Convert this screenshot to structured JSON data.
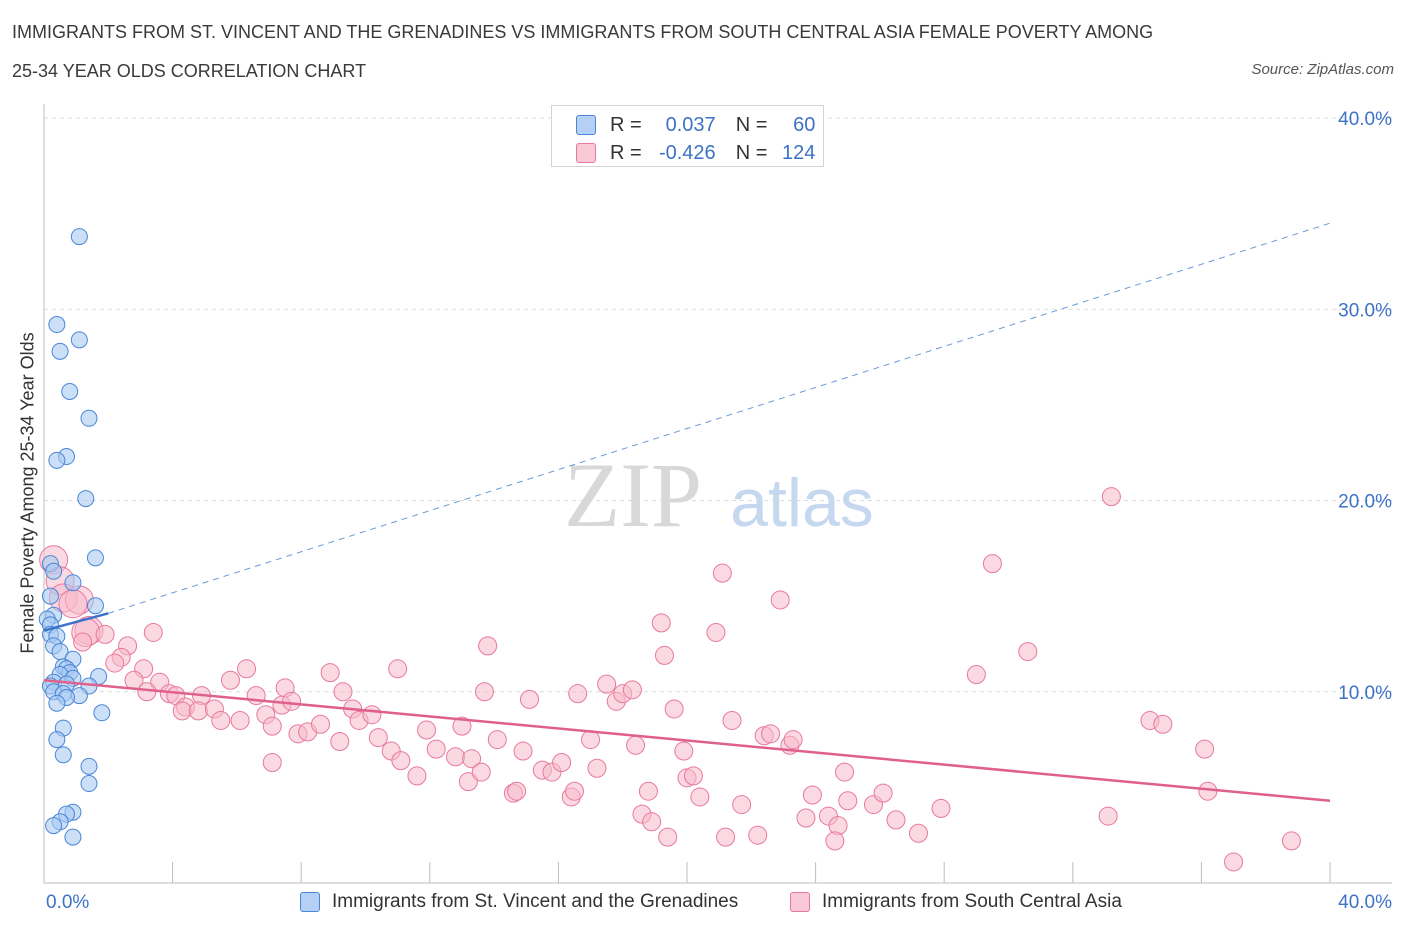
{
  "title_line1": "IMMIGRANTS FROM ST. VINCENT AND THE GRENADINES VS IMMIGRANTS FROM SOUTH CENTRAL ASIA FEMALE POVERTY AMONG",
  "title_line2": "25-34 YEAR OLDS CORRELATION CHART",
  "source": "Source: ZipAtlas.com",
  "watermark": {
    "zip": "ZIP",
    "atlas": "atlas"
  },
  "legend": {
    "r_label": "R =",
    "n_label": "N =",
    "rows": [
      {
        "r": "0.037",
        "n": "60"
      },
      {
        "r": "-0.426",
        "n": "124"
      }
    ]
  },
  "colors": {
    "blue_fill": "#a9c9f2",
    "blue_stroke": "#4a86d6",
    "blue_line": "#3b73cc",
    "pink_fill": "#f7b9cc",
    "pink_stroke": "#e8799c",
    "pink_line": "#e0608c",
    "axis_text": "#3d72c7",
    "grid": "#dcdcdc"
  },
  "chart_data": {
    "type": "scatter",
    "title": "IMMIGRANTS FROM ST. VINCENT AND THE GRENADINES VS IMMIGRANTS FROM SOUTH CENTRAL ASIA FEMALE POVERTY AMONG 25-34 YEAR OLDS CORRELATION CHART",
    "xlabel": "",
    "ylabel": "Female Poverty Among 25-34 Year Olds",
    "xlim": [
      0,
      40
    ],
    "ylim": [
      0,
      40
    ],
    "x_tick_labels": [
      "0.0%",
      "40.0%"
    ],
    "y_tick_labels": [
      "10.0%",
      "20.0%",
      "30.0%",
      "40.0%"
    ],
    "y_ticks": [
      10,
      20,
      30,
      40
    ],
    "grid": true,
    "legend_position": "top-center",
    "series": [
      {
        "name": "Immigrants from St. Vincent and the Grenadines",
        "r": 0.037,
        "n": 60,
        "trend": {
          "x": [
            0,
            2.0
          ],
          "y": [
            13.2,
            14.1
          ]
        },
        "trend_extension": {
          "x": [
            2.0,
            40
          ],
          "y": [
            14.1,
            34.5
          ]
        },
        "points": [
          [
            1.1,
            33.8
          ],
          [
            0.4,
            29.2
          ],
          [
            1.1,
            28.4
          ],
          [
            0.5,
            27.8
          ],
          [
            0.8,
            25.7
          ],
          [
            1.4,
            24.3
          ],
          [
            0.7,
            22.3
          ],
          [
            0.4,
            22.1
          ],
          [
            1.3,
            20.1
          ],
          [
            1.6,
            17.0
          ],
          [
            0.2,
            16.7
          ],
          [
            0.3,
            16.3
          ],
          [
            0.9,
            15.7
          ],
          [
            0.2,
            15.0
          ],
          [
            1.6,
            14.5
          ],
          [
            0.3,
            14.0
          ],
          [
            0.1,
            13.8
          ],
          [
            0.2,
            13.5
          ],
          [
            0.2,
            13.0
          ],
          [
            0.4,
            12.9
          ],
          [
            0.3,
            12.4
          ],
          [
            0.5,
            12.1
          ],
          [
            0.9,
            11.7
          ],
          [
            0.6,
            11.3
          ],
          [
            0.7,
            11.2
          ],
          [
            0.8,
            11.0
          ],
          [
            0.5,
            10.9
          ],
          [
            0.9,
            10.7
          ],
          [
            1.7,
            10.8
          ],
          [
            0.3,
            10.5
          ],
          [
            0.2,
            10.3
          ],
          [
            0.7,
            10.4
          ],
          [
            1.4,
            10.3
          ],
          [
            0.3,
            10.0
          ],
          [
            0.6,
            9.9
          ],
          [
            1.1,
            9.8
          ],
          [
            0.7,
            9.7
          ],
          [
            0.4,
            9.4
          ],
          [
            1.8,
            8.9
          ],
          [
            0.6,
            8.1
          ],
          [
            0.4,
            7.5
          ],
          [
            0.6,
            6.7
          ],
          [
            1.4,
            6.1
          ],
          [
            1.4,
            5.2
          ],
          [
            0.9,
            3.7
          ],
          [
            0.7,
            3.6
          ],
          [
            0.5,
            3.2
          ],
          [
            0.3,
            3.0
          ],
          [
            0.9,
            2.4
          ]
        ]
      },
      {
        "name": "Immigrants from South Central Asia",
        "r": -0.426,
        "n": 124,
        "trend": {
          "x": [
            0,
            40
          ],
          "y": [
            10.6,
            4.3
          ]
        },
        "points": [
          [
            0.3,
            16.9
          ],
          [
            0.5,
            15.8
          ],
          [
            0.6,
            14.9
          ],
          [
            1.1,
            14.8
          ],
          [
            0.9,
            14.6
          ],
          [
            1.4,
            13.2
          ],
          [
            1.3,
            13.1
          ],
          [
            1.9,
            13.0
          ],
          [
            1.2,
            12.6
          ],
          [
            2.6,
            12.4
          ],
          [
            3.4,
            13.1
          ],
          [
            2.4,
            11.8
          ],
          [
            2.2,
            11.5
          ],
          [
            3.1,
            11.2
          ],
          [
            2.8,
            10.6
          ],
          [
            3.6,
            10.5
          ],
          [
            3.2,
            10.0
          ],
          [
            3.9,
            9.9
          ],
          [
            4.1,
            9.8
          ],
          [
            4.4,
            9.2
          ],
          [
            4.3,
            9.0
          ],
          [
            4.9,
            9.8
          ],
          [
            4.8,
            9.0
          ],
          [
            5.3,
            9.1
          ],
          [
            5.5,
            8.5
          ],
          [
            6.1,
            8.5
          ],
          [
            5.8,
            10.6
          ],
          [
            6.3,
            11.2
          ],
          [
            6.6,
            9.8
          ],
          [
            6.9,
            8.8
          ],
          [
            7.1,
            8.2
          ],
          [
            7.5,
            10.2
          ],
          [
            7.4,
            9.3
          ],
          [
            7.7,
            9.5
          ],
          [
            7.1,
            6.3
          ],
          [
            7.9,
            7.8
          ],
          [
            8.2,
            7.9
          ],
          [
            8.6,
            8.3
          ],
          [
            8.9,
            11.0
          ],
          [
            9.3,
            10.0
          ],
          [
            9.6,
            9.1
          ],
          [
            9.8,
            8.5
          ],
          [
            9.2,
            7.4
          ],
          [
            10.2,
            8.8
          ],
          [
            10.4,
            7.6
          ],
          [
            10.8,
            6.9
          ],
          [
            11.0,
            11.2
          ],
          [
            11.1,
            6.4
          ],
          [
            11.6,
            5.6
          ],
          [
            11.9,
            8.0
          ],
          [
            12.2,
            7.0
          ],
          [
            12.8,
            6.6
          ],
          [
            13.0,
            8.2
          ],
          [
            13.3,
            6.5
          ],
          [
            13.2,
            5.3
          ],
          [
            13.8,
            12.4
          ],
          [
            13.7,
            10.0
          ],
          [
            14.1,
            7.5
          ],
          [
            13.6,
            5.8
          ],
          [
            14.6,
            4.7
          ],
          [
            14.7,
            4.8
          ],
          [
            14.9,
            6.9
          ],
          [
            15.1,
            9.6
          ],
          [
            15.5,
            5.9
          ],
          [
            15.8,
            5.8
          ],
          [
            16.1,
            6.3
          ],
          [
            16.4,
            4.5
          ],
          [
            16.5,
            4.8
          ],
          [
            16.6,
            9.9
          ],
          [
            17.0,
            7.5
          ],
          [
            17.2,
            6.0
          ],
          [
            17.8,
            9.5
          ],
          [
            17.5,
            10.4
          ],
          [
            18.0,
            9.9
          ],
          [
            18.3,
            10.1
          ],
          [
            18.4,
            7.2
          ],
          [
            18.6,
            3.6
          ],
          [
            18.8,
            4.8
          ],
          [
            18.9,
            3.2
          ],
          [
            19.2,
            13.6
          ],
          [
            19.3,
            11.9
          ],
          [
            19.4,
            2.4
          ],
          [
            19.6,
            9.1
          ],
          [
            19.9,
            6.9
          ],
          [
            20.0,
            5.5
          ],
          [
            20.2,
            5.6
          ],
          [
            20.4,
            4.5
          ],
          [
            20.9,
            13.1
          ],
          [
            21.2,
            2.4
          ],
          [
            21.1,
            16.2
          ],
          [
            21.4,
            8.5
          ],
          [
            21.7,
            4.1
          ],
          [
            22.2,
            2.5
          ],
          [
            22.4,
            7.7
          ],
          [
            22.6,
            7.8
          ],
          [
            22.9,
            14.8
          ],
          [
            23.2,
            7.2
          ],
          [
            23.3,
            7.5
          ],
          [
            23.7,
            3.4
          ],
          [
            23.9,
            4.6
          ],
          [
            24.4,
            3.5
          ],
          [
            24.7,
            3.0
          ],
          [
            24.6,
            2.2
          ],
          [
            24.9,
            5.8
          ],
          [
            25.0,
            4.3
          ],
          [
            25.8,
            4.1
          ],
          [
            26.1,
            4.7
          ],
          [
            26.5,
            3.3
          ],
          [
            27.2,
            2.6
          ],
          [
            27.9,
            3.9
          ],
          [
            29.0,
            10.9
          ],
          [
            29.5,
            16.7
          ],
          [
            30.6,
            12.1
          ],
          [
            33.2,
            20.2
          ],
          [
            33.1,
            3.5
          ],
          [
            34.4,
            8.5
          ],
          [
            34.8,
            8.3
          ],
          [
            36.1,
            7.0
          ],
          [
            36.2,
            4.8
          ],
          [
            37.0,
            1.1
          ],
          [
            38.8,
            2.2
          ]
        ]
      }
    ]
  },
  "bottom_legend": [
    "Immigrants from St. Vincent and the Grenadines",
    "Immigrants from South Central Asia"
  ]
}
